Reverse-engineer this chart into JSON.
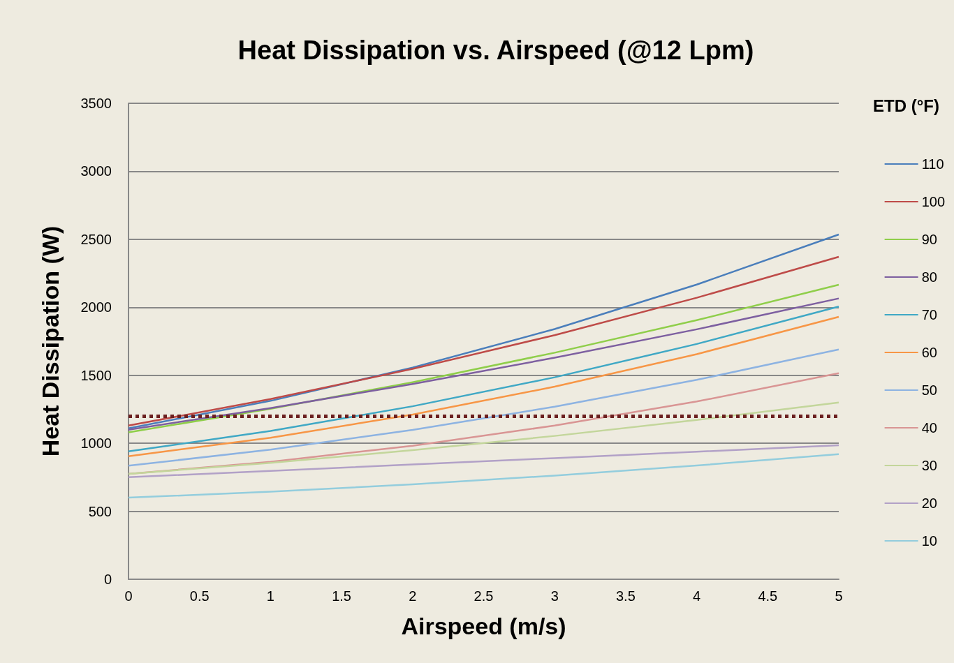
{
  "chart_data": {
    "type": "line",
    "title": "Heat Dissipation vs. Airspeed (@12 Lpm)",
    "xlabel": "Airspeed (m/s)",
    "ylabel": "Heat Dissipation (W)",
    "legend_title": "ETD (°F)",
    "x": [
      0,
      1,
      2,
      3,
      4,
      5
    ],
    "series": [
      {
        "name": "110",
        "color": "#4a7ebb",
        "values": [
          1110,
          1312,
          1556,
          1840,
          2167,
          2535
        ]
      },
      {
        "name": "100",
        "color": "#be4b48",
        "values": [
          1130,
          1325,
          1547,
          1795,
          2070,
          2371
        ]
      },
      {
        "name": "90",
        "color": "#8fce4a",
        "values": [
          1080,
          1254,
          1449,
          1666,
          1905,
          2166
        ]
      },
      {
        "name": "80",
        "color": "#7d5fa0",
        "values": [
          1100,
          1259,
          1436,
          1629,
          1838,
          2065
        ]
      },
      {
        "name": "70",
        "color": "#3fa8c5",
        "values": [
          940,
          1091,
          1272,
          1485,
          1730,
          2005
        ]
      },
      {
        "name": "60",
        "color": "#f79646",
        "values": [
          905,
          1040,
          1211,
          1416,
          1655,
          1930
        ]
      },
      {
        "name": "50",
        "color": "#8db3e2",
        "values": [
          835,
          953,
          1098,
          1269,
          1466,
          1690
        ]
      },
      {
        "name": "40",
        "color": "#d99594",
        "values": [
          775,
          863,
          982,
          1130,
          1307,
          1515
        ]
      },
      {
        "name": "30",
        "color": "#c3d69b",
        "values": [
          775,
          856,
          949,
          1054,
          1171,
          1300
        ]
      },
      {
        "name": "20",
        "color": "#b2a1c7",
        "values": [
          750,
          797,
          844,
          891,
          938,
          985
        ]
      },
      {
        "name": "10",
        "color": "#93cddd",
        "values": [
          600,
          644,
          698,
          762,
          836,
          920
        ]
      }
    ],
    "xlim": [
      0,
      5
    ],
    "xticks": [
      0,
      0.5,
      1,
      1.5,
      2,
      2.5,
      3,
      3.5,
      4,
      4.5,
      5
    ],
    "ylim": [
      0,
      3500
    ],
    "yticks": [
      0,
      500,
      1000,
      1500,
      2000,
      2500,
      3000,
      3500
    ],
    "ref_lines": [
      {
        "axis": "y",
        "value": 1200,
        "color": "#6b2020",
        "line_style": "dotted"
      }
    ],
    "grid": "y",
    "legend": "right",
    "marker": "none",
    "line_style": "solid"
  }
}
